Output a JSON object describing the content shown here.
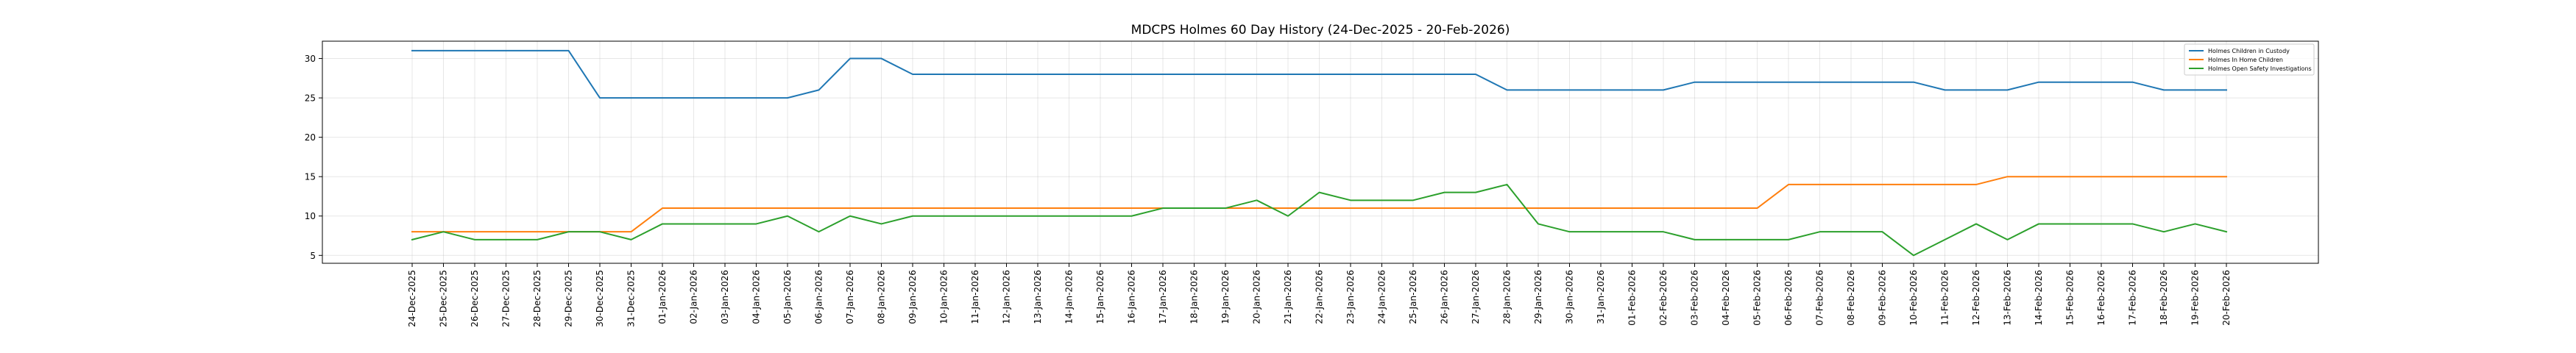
{
  "chart_data": {
    "type": "line",
    "title": "MDCPS Holmes 60 Day History (24-Dec-2025 - 20-Feb-2026)",
    "xlabel": "",
    "ylabel": "",
    "grid": true,
    "legend_position": "top-right",
    "ylim": [
      4.0,
      32.2
    ],
    "yticks": [
      5,
      10,
      15,
      20,
      25,
      30
    ],
    "categories": [
      "24-Dec-2025",
      "25-Dec-2025",
      "26-Dec-2025",
      "27-Dec-2025",
      "28-Dec-2025",
      "29-Dec-2025",
      "30-Dec-2025",
      "31-Dec-2025",
      "01-Jan-2026",
      "02-Jan-2026",
      "03-Jan-2026",
      "04-Jan-2026",
      "05-Jan-2026",
      "06-Jan-2026",
      "07-Jan-2026",
      "08-Jan-2026",
      "09-Jan-2026",
      "10-Jan-2026",
      "11-Jan-2026",
      "12-Jan-2026",
      "13-Jan-2026",
      "14-Jan-2026",
      "15-Jan-2026",
      "16-Jan-2026",
      "17-Jan-2026",
      "18-Jan-2026",
      "19-Jan-2026",
      "20-Jan-2026",
      "21-Jan-2026",
      "22-Jan-2026",
      "23-Jan-2026",
      "24-Jan-2026",
      "25-Jan-2026",
      "26-Jan-2026",
      "27-Jan-2026",
      "28-Jan-2026",
      "29-Jan-2026",
      "30-Jan-2026",
      "31-Jan-2026",
      "01-Feb-2026",
      "02-Feb-2026",
      "03-Feb-2026",
      "04-Feb-2026",
      "05-Feb-2026",
      "06-Feb-2026",
      "07-Feb-2026",
      "08-Feb-2026",
      "09-Feb-2026",
      "10-Feb-2026",
      "11-Feb-2026",
      "12-Feb-2026",
      "13-Feb-2026",
      "14-Feb-2026",
      "15-Feb-2026",
      "16-Feb-2026",
      "17-Feb-2026",
      "18-Feb-2026",
      "19-Feb-2026",
      "20-Feb-2026"
    ],
    "series": [
      {
        "name": "Holmes Children in Custody",
        "color": "#1f77b4",
        "values": [
          31,
          31,
          31,
          31,
          31,
          31,
          25,
          25,
          25,
          25,
          25,
          25,
          25,
          26,
          30,
          30,
          28,
          28,
          28,
          28,
          28,
          28,
          28,
          28,
          28,
          28,
          28,
          28,
          28,
          28,
          28,
          28,
          28,
          28,
          28,
          26,
          26,
          26,
          26,
          26,
          26,
          27,
          27,
          27,
          27,
          27,
          27,
          27,
          27,
          26,
          26,
          26,
          27,
          27,
          27,
          27,
          26,
          26,
          26
        ]
      },
      {
        "name": "Holmes In Home Children",
        "color": "#ff7f0e",
        "values": [
          8,
          8,
          8,
          8,
          8,
          8,
          8,
          8,
          11,
          11,
          11,
          11,
          11,
          11,
          11,
          11,
          11,
          11,
          11,
          11,
          11,
          11,
          11,
          11,
          11,
          11,
          11,
          11,
          11,
          11,
          11,
          11,
          11,
          11,
          11,
          11,
          11,
          11,
          11,
          11,
          11,
          11,
          11,
          11,
          14,
          14,
          14,
          14,
          14,
          14,
          14,
          15,
          15,
          15,
          15,
          15,
          15,
          15,
          15
        ]
      },
      {
        "name": "Holmes Open Safety Investigations",
        "color": "#2ca02c",
        "values": [
          7,
          8,
          7,
          7,
          7,
          8,
          8,
          7,
          9,
          9,
          9,
          9,
          10,
          8,
          10,
          9,
          10,
          10,
          10,
          10,
          10,
          10,
          10,
          10,
          11,
          11,
          11,
          12,
          10,
          13,
          12,
          12,
          12,
          13,
          13,
          14,
          9,
          8,
          8,
          8,
          8,
          7,
          7,
          7,
          7,
          8,
          8,
          8,
          5,
          7,
          9,
          7,
          9,
          9,
          9,
          9,
          8,
          9,
          8
        ]
      }
    ]
  }
}
